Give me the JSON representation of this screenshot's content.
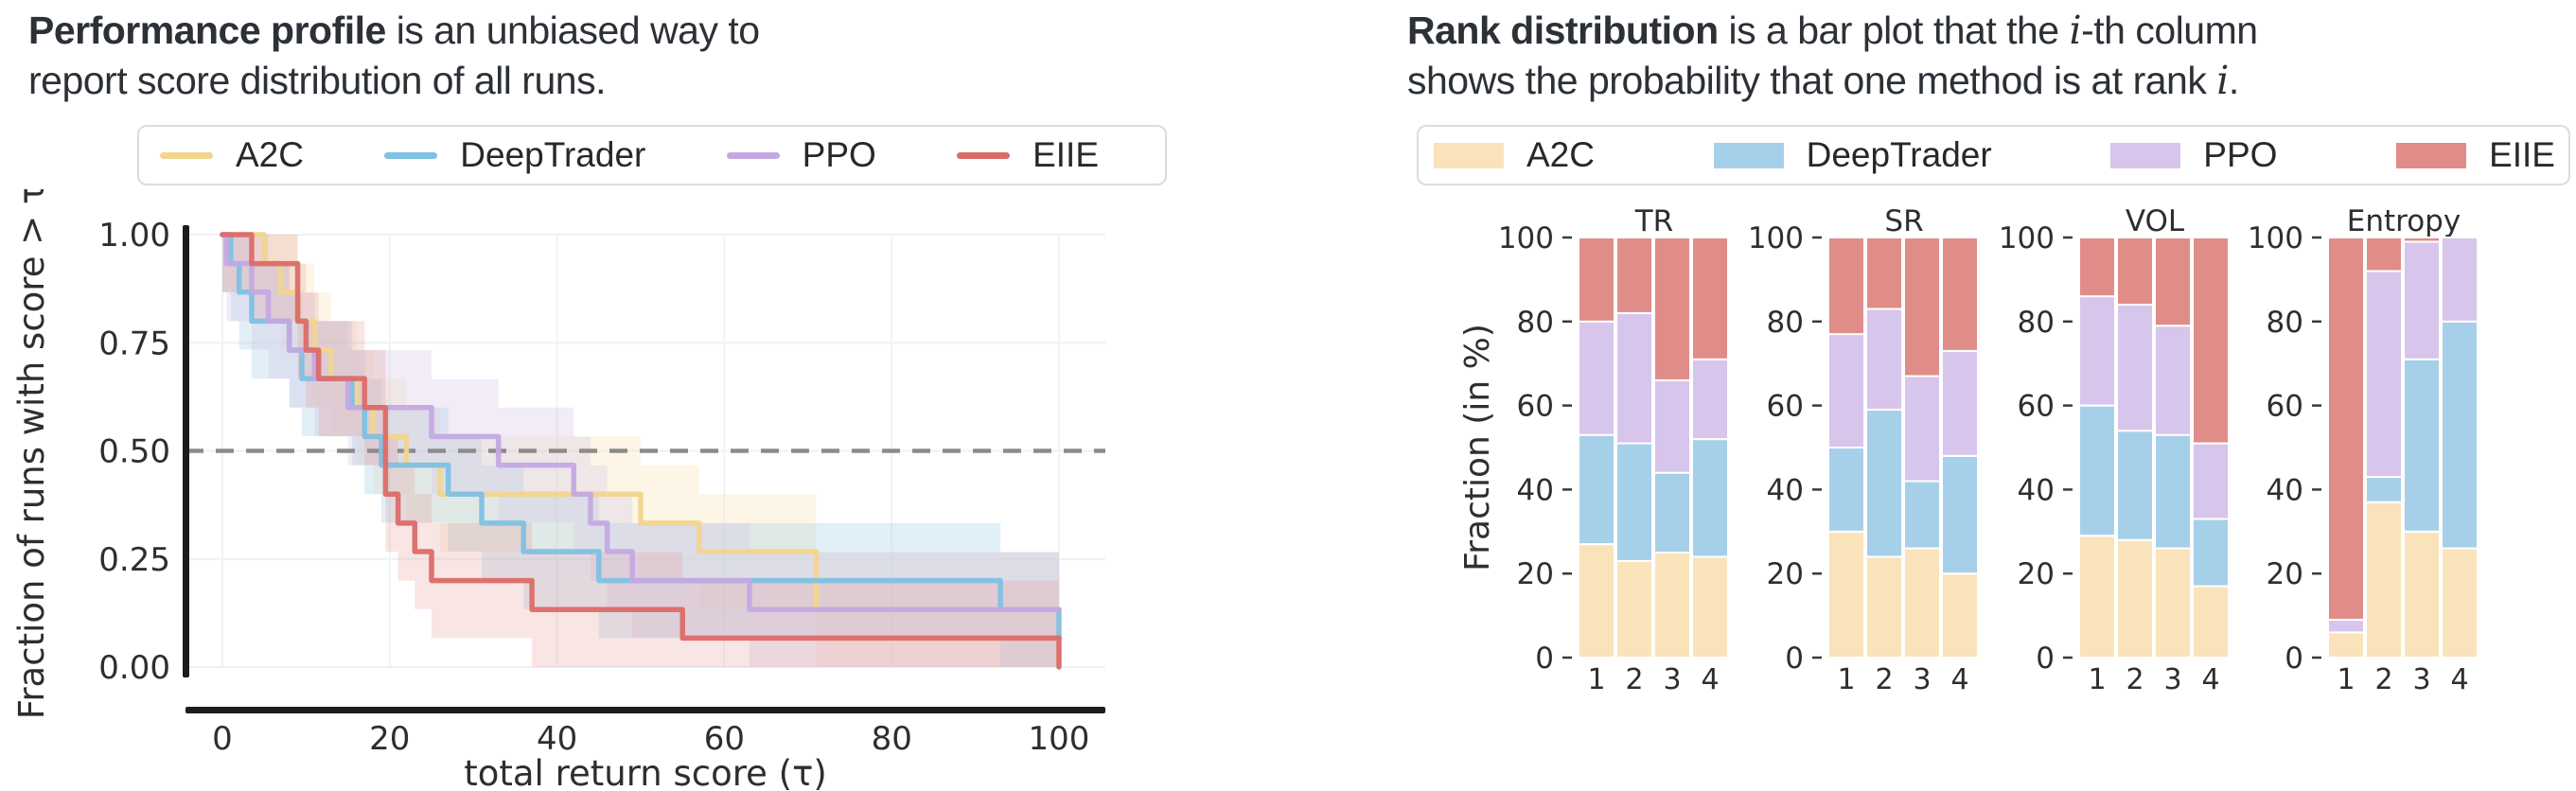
{
  "left_panel": {
    "title": {
      "bold": "Performance profile",
      "rest": " is an unbiased way to",
      "line2": "report score distribution of all runs."
    },
    "legend": [
      {
        "label": "A2C",
        "color": "#F2D48F"
      },
      {
        "label": "DeepTrader",
        "color": "#7FC0E3"
      },
      {
        "label": "PPO",
        "color": "#C3A9E2"
      },
      {
        "label": "EIIE",
        "color": "#DB6B67"
      }
    ]
  },
  "right_panel": {
    "title": {
      "bold": "Rank distribution",
      "rest": " is a bar plot that the ",
      "italic1": "i",
      "rest2": "-th column",
      "line2a": "shows the probability that one method is at rank ",
      "italic2": "i",
      "line2b": "."
    },
    "legend": [
      {
        "label": "A2C",
        "color": "#FAE3BB"
      },
      {
        "label": "DeepTrader",
        "color": "#A6D0E9"
      },
      {
        "label": "PPO",
        "color": "#D7C5EB"
      },
      {
        "label": "EIIE",
        "color": "#E08D89"
      }
    ]
  },
  "chart_data": [
    {
      "type": "line",
      "subtype": "step-performance-profile",
      "xlabel": "total return score (τ)",
      "ylabel": "Fraction of runs with score > τ",
      "xticks": [
        0,
        20,
        40,
        60,
        80,
        100
      ],
      "ytick_labels": [
        "1.00",
        "0.75",
        "0.50",
        "0.25",
        "0.00"
      ],
      "yticks": [
        1.0,
        0.75,
        0.5,
        0.25,
        0.0
      ],
      "xlim": [
        0,
        100
      ],
      "ylim": [
        0,
        1
      ],
      "dashed_y": 0.5,
      "dashed_color": "#8b8b8b",
      "grid": true,
      "band_delta": 0.133,
      "series": [
        {
          "name": "A2C",
          "color": "#F2D48F",
          "band_color": "#F7E0AC",
          "band_opacity": 0.3,
          "points": [
            [
              0,
              1
            ],
            [
              5,
              0.933
            ],
            [
              7,
              0.867
            ],
            [
              9,
              0.8
            ],
            [
              11,
              0.733
            ],
            [
              13,
              0.667
            ],
            [
              16,
              0.6
            ],
            [
              18,
              0.533
            ],
            [
              22,
              0.467
            ],
            [
              26,
              0.4
            ],
            [
              50,
              0.333
            ],
            [
              57,
              0.267
            ],
            [
              71,
              0.133
            ],
            [
              100,
              0.133
            ]
          ]
        },
        {
          "name": "DeepTrader",
          "color": "#7FC0E3",
          "band_color": "#A8D1E9",
          "band_opacity": 0.34,
          "points": [
            [
              0,
              1
            ],
            [
              1,
              0.933
            ],
            [
              2,
              0.867
            ],
            [
              3.5,
              0.8
            ],
            [
              8,
              0.733
            ],
            [
              9.5,
              0.667
            ],
            [
              15.5,
              0.6
            ],
            [
              17,
              0.533
            ],
            [
              19,
              0.467
            ],
            [
              27,
              0.4
            ],
            [
              31,
              0.333
            ],
            [
              36,
              0.267
            ],
            [
              45,
              0.2
            ],
            [
              93,
              0.133
            ],
            [
              100,
              0.067
            ]
          ]
        },
        {
          "name": "PPO",
          "color": "#C3A9E2",
          "band_color": "#D5C3EA",
          "band_opacity": 0.32,
          "points": [
            [
              0,
              1
            ],
            [
              0.5,
              0.933
            ],
            [
              3.5,
              0.867
            ],
            [
              5.5,
              0.8
            ],
            [
              8,
              0.733
            ],
            [
              11,
              0.667
            ],
            [
              15,
              0.6
            ],
            [
              25,
              0.533
            ],
            [
              33,
              0.467
            ],
            [
              42,
              0.4
            ],
            [
              44,
              0.333
            ],
            [
              46,
              0.267
            ],
            [
              49,
              0.2
            ],
            [
              63,
              0.133
            ],
            [
              100,
              0.133
            ]
          ]
        },
        {
          "name": "EIIE",
          "color": "#DB6B67",
          "band_color": "#E59B97",
          "band_opacity": 0.26,
          "points": [
            [
              0,
              1
            ],
            [
              3.5,
              0.933
            ],
            [
              9,
              0.8
            ],
            [
              10,
              0.733
            ],
            [
              11.5,
              0.667
            ],
            [
              17,
              0.6
            ],
            [
              19.5,
              0.4
            ],
            [
              21,
              0.333
            ],
            [
              23,
              0.267
            ],
            [
              25,
              0.2
            ],
            [
              37,
              0.133
            ],
            [
              55,
              0.067
            ],
            [
              100,
              0
            ]
          ]
        }
      ]
    },
    {
      "type": "bar",
      "stacked": true,
      "ylabel": "Fraction (in %)",
      "yticks": [
        0,
        20,
        40,
        60,
        80,
        100
      ],
      "ylim": [
        0,
        100
      ],
      "categories": [
        "1",
        "2",
        "3",
        "4"
      ],
      "series_names": [
        "A2C",
        "DeepTrader",
        "PPO",
        "EIIE"
      ],
      "colors": {
        "A2C": "#FAE3BB",
        "DeepTrader": "#A6D0E9",
        "PPO": "#D7C5EB",
        "EIIE": "#E08D89"
      },
      "subplots": [
        {
          "title": "TR",
          "values": {
            "A2C": [
              27,
              23,
              25,
              24
            ],
            "DeepTrader": [
              26,
              28,
              19,
              28
            ],
            "PPO": [
              27,
              31,
              22,
              19
            ],
            "EIIE": [
              20,
              18,
              34,
              29
            ]
          }
        },
        {
          "title": "SR",
          "values": {
            "A2C": [
              30,
              24,
              26,
              20
            ],
            "DeepTrader": [
              20,
              35,
              16,
              28
            ],
            "PPO": [
              27,
              24,
              25,
              25
            ],
            "EIIE": [
              23,
              17,
              33,
              27
            ]
          }
        },
        {
          "title": "VOL",
          "values": {
            "A2C": [
              29,
              28,
              26,
              17
            ],
            "DeepTrader": [
              31,
              26,
              27,
              16
            ],
            "PPO": [
              26,
              30,
              26,
              18
            ],
            "EIIE": [
              14,
              16,
              21,
              49
            ]
          }
        },
        {
          "title": "Entropy",
          "values": {
            "A2C": [
              6,
              37,
              30,
              26
            ],
            "DeepTrader": [
              0,
              6,
              41,
              54
            ],
            "PPO": [
              3,
              49,
              28,
              20
            ],
            "EIIE": [
              91,
              8,
              1,
              0
            ]
          }
        }
      ]
    }
  ]
}
